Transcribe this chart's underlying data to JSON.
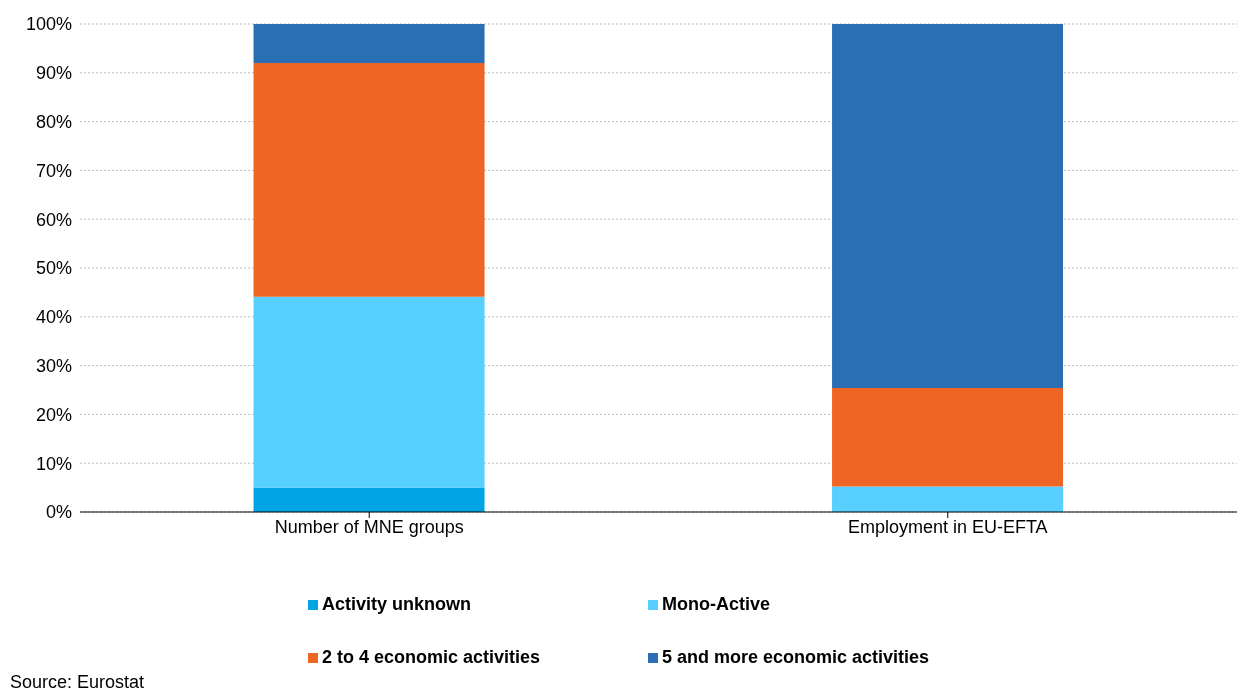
{
  "chart_data": {
    "type": "bar",
    "stacked": true,
    "categories": [
      "Number of MNE groups",
      "Employment in EU-EFTA"
    ],
    "series": [
      {
        "name": "Activity unknown",
        "color": "#00a5e6",
        "values": [
          5.0,
          0
        ]
      },
      {
        "name": "Mono-Active",
        "color": "#57cfff",
        "values": [
          39.1,
          5.2
        ]
      },
      {
        "name": "2 to 4 economic activities",
        "color": "#ef6524",
        "values": [
          47.9,
          20.2
        ]
      },
      {
        "name": "5  and more economic activities",
        "color": "#2a6eb4",
        "values": [
          8.0,
          74.6
        ]
      }
    ],
    "ylim": [
      0,
      100
    ],
    "yticks": [
      {
        "value": 0,
        "label": "0%"
      },
      {
        "value": 10,
        "label": "10%"
      },
      {
        "value": 20,
        "label": "20%"
      },
      {
        "value": 30,
        "label": "30%"
      },
      {
        "value": 40,
        "label": "40%"
      },
      {
        "value": 50,
        "label": "50%"
      },
      {
        "value": 60,
        "label": "60%"
      },
      {
        "value": 70,
        "label": "70%"
      },
      {
        "value": 80,
        "label": "80%"
      },
      {
        "value": 90,
        "label": "90%"
      },
      {
        "value": 100,
        "label": "100%"
      }
    ],
    "grid": "y",
    "legend": "bottom",
    "annotations": [
      "Source: Eurostat"
    ]
  }
}
